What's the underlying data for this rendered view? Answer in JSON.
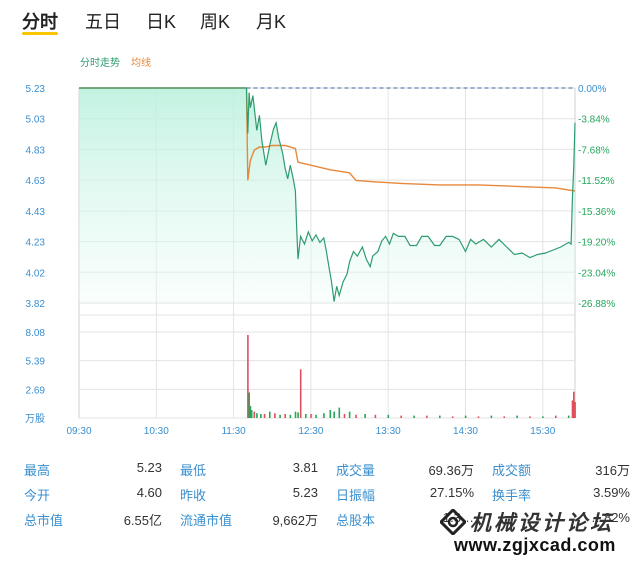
{
  "tabs": [
    {
      "label": "分时",
      "active": true
    },
    {
      "label": "五日",
      "active": false
    },
    {
      "label": "日K",
      "active": false
    },
    {
      "label": "周K",
      "active": false
    },
    {
      "label": "月K",
      "active": false
    }
  ],
  "legend": {
    "price": "分时走势",
    "avg": "均线"
  },
  "colors": {
    "price_line": "#2e9c70",
    "avg_line": "#e8883a",
    "fall": "#26a65b",
    "rise": "#e0505a",
    "axis_text": "#3a8fcf",
    "grid": "#e3e3e3"
  },
  "chart_data": {
    "type": "line",
    "price_axis": {
      "ylim": [
        3.81,
        5.23
      ],
      "ticks": [
        "5.23",
        "5.03",
        "4.83",
        "4.63",
        "4.43",
        "4.23",
        "4.02",
        "3.82"
      ]
    },
    "pct_axis": {
      "ticks": [
        "0.00%",
        "-3.84%",
        "-7.68%",
        "-11.52%",
        "-15.36%",
        "-19.20%",
        "-23.04%",
        "-26.88%"
      ]
    },
    "volume_axis": {
      "ylim": [
        0,
        10.78
      ],
      "ticks": [
        "8.08",
        "5.39",
        "2.69"
      ],
      "unit": "万股"
    },
    "x_ticks": [
      "09:30",
      "10:30",
      "11:30",
      "12:30",
      "13:30",
      "14:30",
      "15:30"
    ],
    "prev_close": 5.23,
    "price_series": [
      [
        "09:30",
        5.23
      ],
      [
        "11:40",
        5.23
      ],
      [
        "11:41",
        4.93
      ],
      [
        "11:42",
        5.2
      ],
      [
        "11:43",
        5.1
      ],
      [
        "11:45",
        5.18
      ],
      [
        "11:48",
        4.95
      ],
      [
        "11:50",
        5.05
      ],
      [
        "11:52",
        4.88
      ],
      [
        "11:55",
        4.72
      ],
      [
        "11:58",
        4.85
      ],
      [
        "12:01",
        4.96
      ],
      [
        "12:03",
        5.0
      ],
      [
        "12:05",
        4.9
      ],
      [
        "12:08",
        4.8
      ],
      [
        "12:10",
        4.7
      ],
      [
        "12:12",
        4.63
      ],
      [
        "12:14",
        4.72
      ],
      [
        "12:16",
        4.64
      ],
      [
        "12:18",
        4.55
      ],
      [
        "12:19",
        4.3
      ],
      [
        "12:20",
        4.1
      ],
      [
        "12:22",
        4.25
      ],
      [
        "12:25",
        4.2
      ],
      [
        "12:28",
        4.28
      ],
      [
        "12:31",
        4.22
      ],
      [
        "12:34",
        4.26
      ],
      [
        "12:37",
        4.21
      ],
      [
        "12:40",
        4.24
      ],
      [
        "12:42",
        4.15
      ],
      [
        "12:44",
        4.05
      ],
      [
        "12:46",
        3.95
      ],
      [
        "12:48",
        3.82
      ],
      [
        "12:50",
        3.92
      ],
      [
        "12:52",
        3.86
      ],
      [
        "12:55",
        3.95
      ],
      [
        "12:58",
        4.0
      ],
      [
        "13:00",
        4.08
      ],
      [
        "13:03",
        4.15
      ],
      [
        "13:06",
        4.12
      ],
      [
        "13:10",
        4.18
      ],
      [
        "13:13",
        4.1
      ],
      [
        "13:16",
        4.05
      ],
      [
        "13:18",
        4.12
      ],
      [
        "13:22",
        4.15
      ],
      [
        "13:25",
        4.22
      ],
      [
        "13:28",
        4.25
      ],
      [
        "13:31",
        4.2
      ],
      [
        "13:34",
        4.27
      ],
      [
        "13:38",
        4.25
      ],
      [
        "13:43",
        4.25
      ],
      [
        "13:47",
        4.19
      ],
      [
        "13:52",
        4.19
      ],
      [
        "13:56",
        4.25
      ],
      [
        "14:01",
        4.25
      ],
      [
        "14:06",
        4.19
      ],
      [
        "14:10",
        4.19
      ],
      [
        "14:15",
        4.25
      ],
      [
        "14:20",
        4.25
      ],
      [
        "14:25",
        4.23
      ],
      [
        "14:30",
        4.15
      ],
      [
        "14:34",
        4.23
      ],
      [
        "14:38",
        4.2
      ],
      [
        "14:44",
        4.23
      ],
      [
        "14:50",
        4.18
      ],
      [
        "14:56",
        4.23
      ],
      [
        "15:02",
        4.18
      ],
      [
        "15:08",
        4.13
      ],
      [
        "15:14",
        4.14
      ],
      [
        "15:20",
        4.11
      ],
      [
        "15:26",
        4.13
      ],
      [
        "15:32",
        4.14
      ],
      [
        "15:38",
        4.16
      ],
      [
        "15:44",
        4.18
      ],
      [
        "15:50",
        4.21
      ],
      [
        "15:52",
        4.2
      ],
      [
        "15:53",
        4.5
      ],
      [
        "15:54",
        4.7
      ],
      [
        "15:55",
        5.0
      ]
    ],
    "avg_series": [
      [
        "09:30",
        5.23
      ],
      [
        "11:40",
        5.23
      ],
      [
        "11:41",
        4.62
      ],
      [
        "11:43",
        4.75
      ],
      [
        "11:46",
        4.82
      ],
      [
        "11:50",
        4.84
      ],
      [
        "11:55",
        4.84
      ],
      [
        "12:00",
        4.85
      ],
      [
        "12:10",
        4.85
      ],
      [
        "12:18",
        4.83
      ],
      [
        "12:20",
        4.74
      ],
      [
        "12:30",
        4.72
      ],
      [
        "12:45",
        4.69
      ],
      [
        "13:00",
        4.67
      ],
      [
        "13:05",
        4.62
      ],
      [
        "13:20",
        4.61
      ],
      [
        "13:40",
        4.6
      ],
      [
        "14:10",
        4.59
      ],
      [
        "14:40",
        4.59
      ],
      [
        "15:10",
        4.58
      ],
      [
        "15:40",
        4.57
      ],
      [
        "15:55",
        4.55
      ]
    ],
    "volume_bars": [
      [
        "11:41",
        10.4,
        "up"
      ],
      [
        "11:42",
        3.2,
        "down"
      ],
      [
        "11:43",
        1.5,
        "down"
      ],
      [
        "11:44",
        1.0,
        "down"
      ],
      [
        "11:46",
        0.8,
        "up"
      ],
      [
        "11:48",
        0.6,
        "down"
      ],
      [
        "11:51",
        0.5,
        "down"
      ],
      [
        "11:54",
        0.5,
        "up"
      ],
      [
        "11:58",
        0.8,
        "down"
      ],
      [
        "12:02",
        0.6,
        "up"
      ],
      [
        "12:06",
        0.4,
        "down"
      ],
      [
        "12:10",
        0.5,
        "up"
      ],
      [
        "12:14",
        0.4,
        "down"
      ],
      [
        "12:18",
        0.8,
        "down"
      ],
      [
        "12:20",
        0.7,
        "down"
      ],
      [
        "12:22",
        6.1,
        "up"
      ],
      [
        "12:26",
        0.5,
        "down"
      ],
      [
        "12:30",
        0.5,
        "up"
      ],
      [
        "12:34",
        0.4,
        "down"
      ],
      [
        "12:40",
        0.6,
        "down"
      ],
      [
        "12:45",
        1.0,
        "down"
      ],
      [
        "12:48",
        0.8,
        "down"
      ],
      [
        "12:52",
        1.3,
        "down"
      ],
      [
        "12:56",
        0.5,
        "up"
      ],
      [
        "13:00",
        0.8,
        "down"
      ],
      [
        "13:05",
        0.4,
        "up"
      ],
      [
        "13:12",
        0.5,
        "down"
      ],
      [
        "13:20",
        0.4,
        "up"
      ],
      [
        "13:30",
        0.4,
        "down"
      ],
      [
        "13:40",
        0.3,
        "up"
      ],
      [
        "13:50",
        0.3,
        "down"
      ],
      [
        "14:00",
        0.3,
        "up"
      ],
      [
        "14:10",
        0.3,
        "down"
      ],
      [
        "14:20",
        0.2,
        "up"
      ],
      [
        "14:30",
        0.3,
        "down"
      ],
      [
        "14:40",
        0.2,
        "up"
      ],
      [
        "14:50",
        0.3,
        "down"
      ],
      [
        "15:00",
        0.2,
        "up"
      ],
      [
        "15:10",
        0.3,
        "down"
      ],
      [
        "15:20",
        0.2,
        "up"
      ],
      [
        "15:30",
        0.2,
        "down"
      ],
      [
        "15:40",
        0.3,
        "up"
      ],
      [
        "15:50",
        0.3,
        "down"
      ],
      [
        "15:53",
        2.2,
        "up"
      ],
      [
        "15:54",
        3.3,
        "up"
      ],
      [
        "15:55",
        2.0,
        "up"
      ]
    ],
    "grid": true
  },
  "stats": [
    {
      "label": "最高",
      "value": "5.23"
    },
    {
      "label": "最低",
      "value": "3.81"
    },
    {
      "label": "成交量",
      "value": "69.36万"
    },
    {
      "label": "成交额",
      "value": "316万"
    },
    {
      "label": "今开",
      "value": "4.60"
    },
    {
      "label": "昨收",
      "value": "5.23"
    },
    {
      "label": "日振幅",
      "value": "27.15%"
    },
    {
      "label": "换手率",
      "value": "3.59%"
    },
    {
      "label": "总市值",
      "value": "6.55亿"
    },
    {
      "label": "流通市值",
      "value": "9,662万"
    },
    {
      "label": "总股本",
      "value": "1.3…"
    },
    {
      "label": "",
      "value": "…82%"
    }
  ],
  "watermark": {
    "text": "机械设计论坛",
    "url": "www.zgjxcad.com",
    "logo": "diamond-gear-logo"
  }
}
